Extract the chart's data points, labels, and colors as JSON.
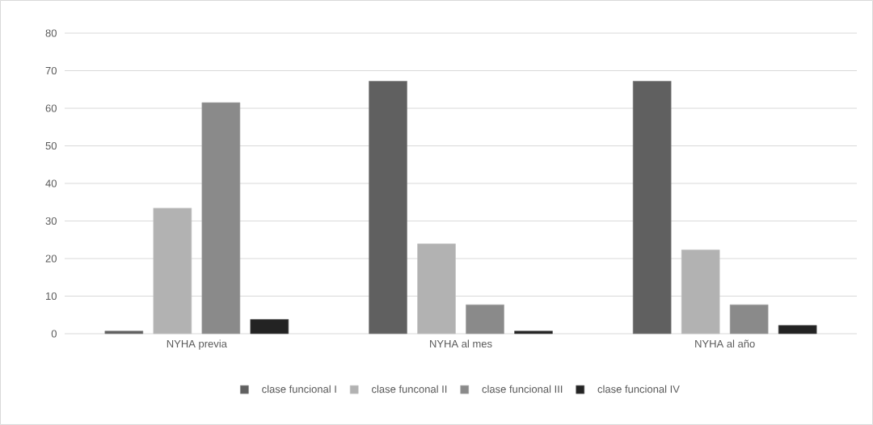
{
  "chart_data": {
    "type": "bar",
    "categories": [
      "NYHA previa",
      "NYHA al mes",
      "NYHA al año"
    ],
    "series": [
      {
        "name": "clase funcional I",
        "color": "#606060",
        "values": [
          0.7,
          67.2,
          67.2
        ]
      },
      {
        "name": "clase funconal II",
        "color": "#b2b2b2",
        "values": [
          33.4,
          23.9,
          22.3
        ]
      },
      {
        "name": "clase funcional III",
        "color": "#8a8a8a",
        "values": [
          61.5,
          7.7,
          7.7
        ]
      },
      {
        "name": "clase funcional IV",
        "color": "#232323",
        "values": [
          3.8,
          0.7,
          2.2
        ]
      }
    ],
    "ylim": [
      0,
      80
    ],
    "yticks": [
      0,
      10,
      20,
      30,
      40,
      50,
      60,
      70,
      80
    ],
    "grid": "y",
    "legend": "bottom"
  }
}
